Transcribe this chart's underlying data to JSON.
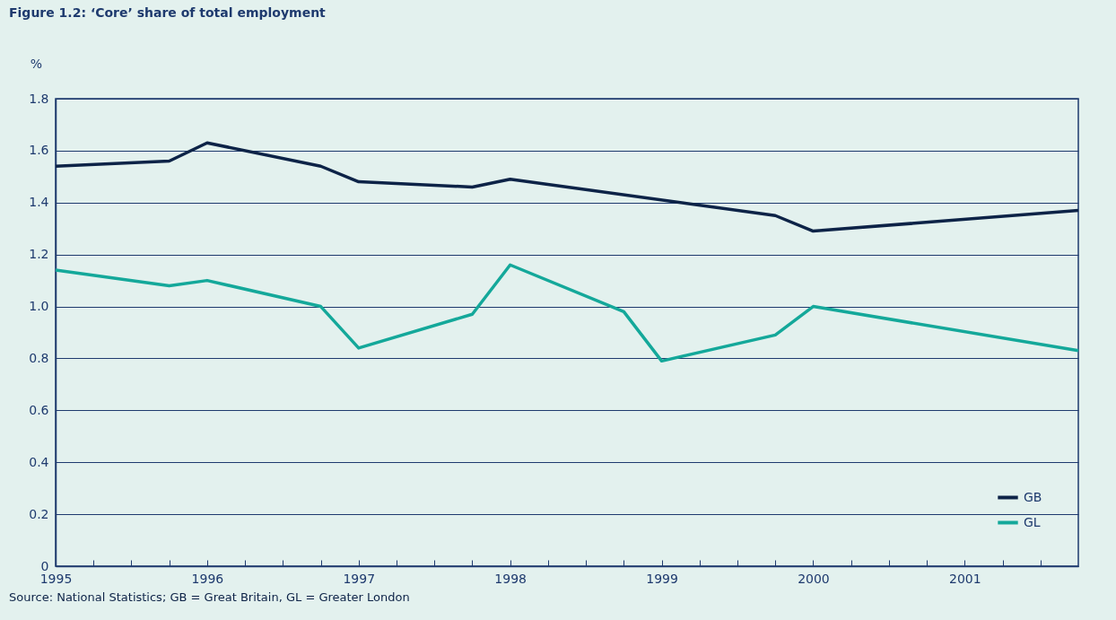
{
  "chart_data": {
    "type": "line",
    "title": "Figure 1.2: ‘Core’ share of total employment",
    "ylabel": "%",
    "annotations": [
      "Source: National Statistics; GB = Great Britain, GL = Greater London"
    ],
    "series": [
      {
        "name": "GB",
        "color": "#0d2347",
        "x": [
          1995,
          1995.75,
          1996,
          1996.75,
          1997,
          1997.75,
          1998,
          1999.75,
          2000,
          2001.75
        ],
        "values": [
          1.54,
          1.56,
          1.63,
          1.54,
          1.48,
          1.46,
          1.49,
          1.35,
          1.29,
          1.37
        ]
      },
      {
        "name": "GL",
        "color": "#14a89a",
        "x": [
          1995,
          1995.75,
          1996,
          1996.75,
          1997,
          1997.75,
          1998,
          1998.75,
          1999,
          1999.75,
          2000,
          2001.75
        ],
        "values": [
          1.14,
          1.08,
          1.1,
          1.0,
          0.84,
          0.97,
          1.16,
          0.98,
          0.79,
          0.89,
          1.0,
          0.83
        ]
      }
    ],
    "xlim": [
      1995,
      2001.75
    ],
    "xticks": [
      1995,
      {
        "value": 1995.25,
        "label": null
      },
      {
        "value": 1995.5,
        "label": null
      },
      {
        "value": 1995.75,
        "label": null
      },
      1996,
      {
        "value": 1996.25,
        "label": null
      },
      {
        "value": 1996.5,
        "label": null
      },
      {
        "value": 1996.75,
        "label": null
      },
      1997,
      {
        "value": 1997.25,
        "label": null
      },
      {
        "value": 1997.5,
        "label": null
      },
      {
        "value": 1997.75,
        "label": null
      },
      1998,
      {
        "value": 1998.25,
        "label": null
      },
      {
        "value": 1998.5,
        "label": null
      },
      {
        "value": 1998.75,
        "label": null
      },
      1999,
      {
        "value": 1999.25,
        "label": null
      },
      {
        "value": 1999.5,
        "label": null
      },
      {
        "value": 1999.75,
        "label": null
      },
      2000,
      {
        "value": 2000.25,
        "label": null
      },
      {
        "value": 2000.5,
        "label": null
      },
      {
        "value": 2000.75,
        "label": null
      },
      2001,
      {
        "value": 2001.25,
        "label": null
      },
      {
        "value": 2001.5,
        "label": null
      }
    ],
    "ylim": [
      0,
      1.8
    ],
    "yticks": [
      0,
      0.2,
      0.4,
      0.6,
      0.8,
      {
        "value": 1,
        "label": "1.0"
      },
      1.2,
      1.4,
      1.6,
      1.8
    ],
    "grid": "y",
    "legend": "bottom right",
    "marker": "none",
    "line_style": "solid"
  }
}
